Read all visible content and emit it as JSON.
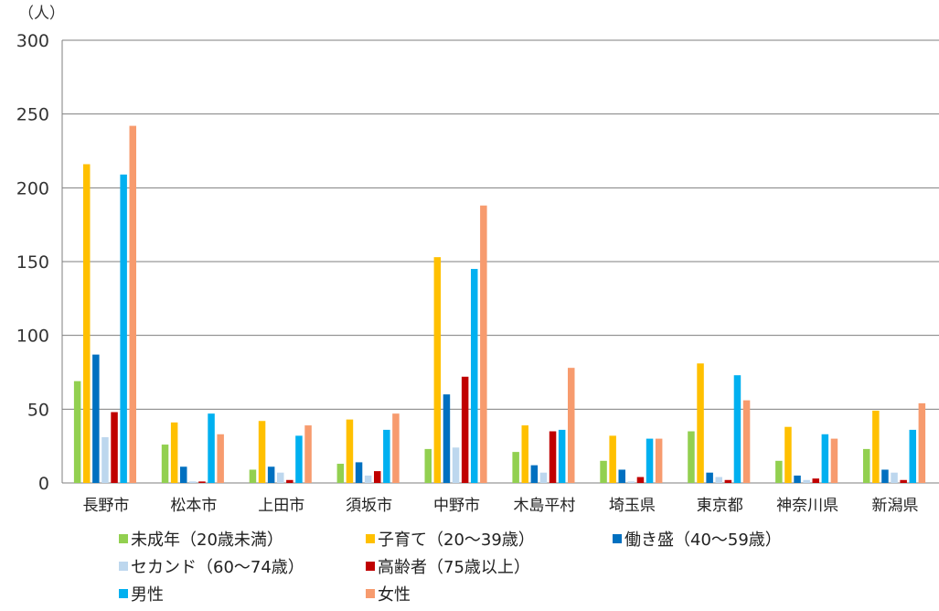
{
  "chart_data": {
    "type": "bar",
    "title": "",
    "xlabel": "",
    "ylabel": "",
    "y_unit": "（人）",
    "ylim": [
      0,
      300
    ],
    "y_ticks": [
      0,
      50,
      100,
      150,
      200,
      250,
      300
    ],
    "grid": true,
    "legend_position": "bottom",
    "categories": [
      "長野市",
      "松本市",
      "上田市",
      "須坂市",
      "中野市",
      "木島平村",
      "埼玉県",
      "東京都",
      "神奈川県",
      "新潟県"
    ],
    "series": [
      {
        "name": "未成年（20歳未満）",
        "color": "#92D050",
        "values": [
          69,
          26,
          9,
          13,
          23,
          21,
          15,
          35,
          15,
          23
        ]
      },
      {
        "name": "子育て（20〜39歳）",
        "color": "#FFC000",
        "values": [
          216,
          41,
          42,
          43,
          153,
          39,
          32,
          81,
          38,
          49
        ]
      },
      {
        "name": "働き盛（40〜59歳）",
        "color": "#0070C0",
        "values": [
          87,
          11,
          11,
          14,
          60,
          12,
          9,
          7,
          5,
          9
        ]
      },
      {
        "name": "セカンド（60〜74歳）",
        "color": "#BDD7EE",
        "values": [
          31,
          1,
          7,
          5,
          24,
          7,
          1,
          4,
          2,
          7
        ]
      },
      {
        "name": "高齢者（75歳以上）",
        "color": "#C00000",
        "values": [
          48,
          1,
          2,
          8,
          72,
          35,
          4,
          2,
          3,
          2
        ]
      },
      {
        "name": "男性",
        "color": "#00B0F0",
        "values": [
          209,
          47,
          32,
          36,
          145,
          36,
          30,
          73,
          33,
          36
        ]
      },
      {
        "name": "女性",
        "color": "#F79B6E",
        "values": [
          242,
          33,
          39,
          47,
          188,
          78,
          30,
          56,
          30,
          54
        ]
      }
    ]
  }
}
